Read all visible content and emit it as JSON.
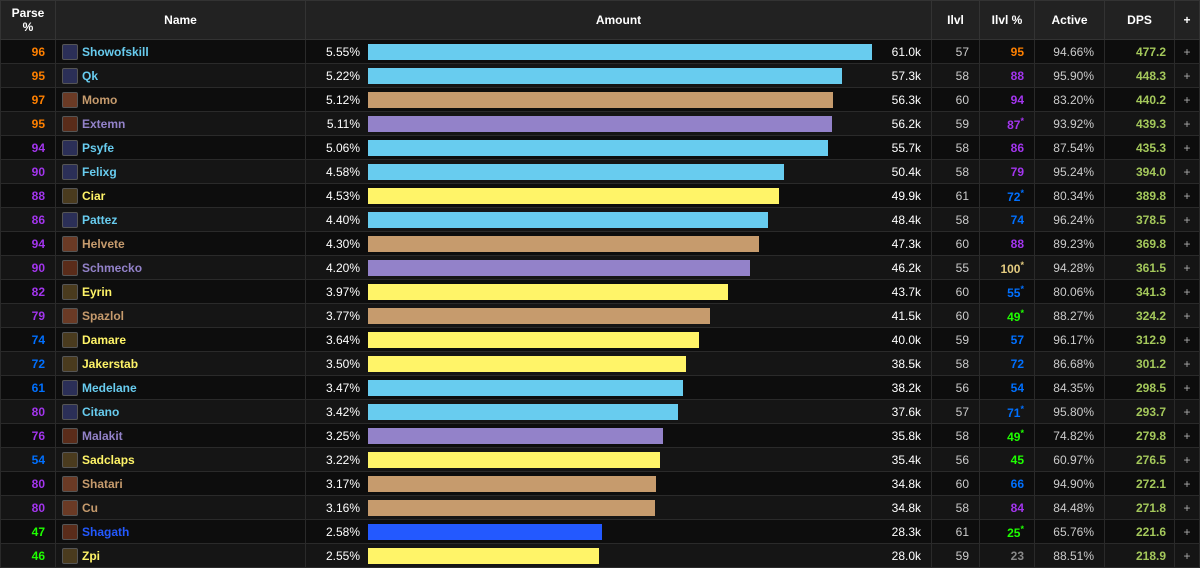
{
  "colors": {
    "parse_legendary": "#ff8000",
    "parse_epic": "#a335ee",
    "parse_rare": "#0070ff",
    "parse_uncommon": "#1eff00",
    "parse_common": "#888888",
    "parse_gold": "#e5cc80",
    "class_mage": "#68ccef",
    "class_warrior": "#c69b6d",
    "class_warlock": "#9382c9",
    "class_rogue": "#fff468",
    "class_shaman": "#2359ff",
    "dps": "#a4c85b"
  },
  "columns": {
    "parse": "Parse %",
    "name": "Name",
    "amount": "Amount",
    "ilvl": "Ilvl",
    "ilvlp": "Ilvl %",
    "active": "Active",
    "dps": "DPS",
    "plus": "+"
  },
  "max_pct": 5.55,
  "rows": [
    {
      "parse": 96,
      "parseColor": "parse_legendary",
      "name": "Showofskill",
      "class": "class_mage",
      "iconBg": "#2b2f57",
      "pct": "5.55%",
      "barPct": 100.0,
      "amount": "61.0k",
      "ilvl": 57,
      "ilvlp": "95",
      "ilvlpColor": "parse_legendary",
      "active": "94.66%",
      "dps": "477.2"
    },
    {
      "parse": 95,
      "parseColor": "parse_legendary",
      "name": "Qk",
      "class": "class_mage",
      "iconBg": "#2b2f57",
      "pct": "5.22%",
      "barPct": 94.1,
      "amount": "57.3k",
      "ilvl": 58,
      "ilvlp": "88",
      "ilvlpColor": "parse_epic",
      "active": "95.90%",
      "dps": "448.3"
    },
    {
      "parse": 97,
      "parseColor": "parse_legendary",
      "name": "Momo",
      "class": "class_warrior",
      "iconBg": "#6a3a25",
      "pct": "5.12%",
      "barPct": 92.3,
      "amount": "56.3k",
      "ilvl": 60,
      "ilvlp": "94",
      "ilvlpColor": "parse_epic",
      "active": "83.20%",
      "dps": "440.2"
    },
    {
      "parse": 95,
      "parseColor": "parse_legendary",
      "name": "Extemn",
      "class": "class_warlock",
      "iconBg": "#5a2c1a",
      "pct": "5.11%",
      "barPct": 92.1,
      "amount": "56.2k",
      "ilvl": 59,
      "ilvlp": "87",
      "ilvlpStar": true,
      "ilvlpColor": "parse_epic",
      "active": "93.92%",
      "dps": "439.3"
    },
    {
      "parse": 94,
      "parseColor": "parse_epic",
      "name": "Psyfe",
      "class": "class_mage",
      "iconBg": "#2b2f57",
      "pct": "5.06%",
      "barPct": 91.2,
      "amount": "55.7k",
      "ilvl": 58,
      "ilvlp": "86",
      "ilvlpColor": "parse_epic",
      "active": "87.54%",
      "dps": "435.3"
    },
    {
      "parse": 90,
      "parseColor": "parse_epic",
      "name": "Felixg",
      "class": "class_mage",
      "iconBg": "#2b2f57",
      "pct": "4.58%",
      "barPct": 82.5,
      "amount": "50.4k",
      "ilvl": 58,
      "ilvlp": "79",
      "ilvlpColor": "parse_epic",
      "active": "95.24%",
      "dps": "394.0"
    },
    {
      "parse": 88,
      "parseColor": "parse_epic",
      "name": "Ciar",
      "class": "class_rogue",
      "iconBg": "#4a3b1e",
      "pct": "4.53%",
      "barPct": 81.6,
      "amount": "49.9k",
      "ilvl": 61,
      "ilvlp": "72",
      "ilvlpStar": true,
      "ilvlpColor": "parse_rare",
      "active": "80.34%",
      "dps": "389.8"
    },
    {
      "parse": 86,
      "parseColor": "parse_epic",
      "name": "Pattez",
      "class": "class_mage",
      "iconBg": "#2b2f57",
      "pct": "4.40%",
      "barPct": 79.3,
      "amount": "48.4k",
      "ilvl": 58,
      "ilvlp": "74",
      "ilvlpColor": "parse_rare",
      "active": "96.24%",
      "dps": "378.5"
    },
    {
      "parse": 94,
      "parseColor": "parse_epic",
      "name": "Helvete",
      "class": "class_warrior",
      "iconBg": "#6a3a25",
      "pct": "4.30%",
      "barPct": 77.5,
      "amount": "47.3k",
      "ilvl": 60,
      "ilvlp": "88",
      "ilvlpColor": "parse_epic",
      "active": "89.23%",
      "dps": "369.8"
    },
    {
      "parse": 90,
      "parseColor": "parse_epic",
      "name": "Schmecko",
      "class": "class_warlock",
      "iconBg": "#5a2c1a",
      "pct": "4.20%",
      "barPct": 75.7,
      "amount": "46.2k",
      "ilvl": 55,
      "ilvlp": "100",
      "ilvlpStar": true,
      "ilvlpColor": "parse_gold",
      "active": "94.28%",
      "dps": "361.5"
    },
    {
      "parse": 82,
      "parseColor": "parse_epic",
      "name": "Eyrin",
      "class": "class_rogue",
      "iconBg": "#4a3b1e",
      "pct": "3.97%",
      "barPct": 71.5,
      "amount": "43.7k",
      "ilvl": 60,
      "ilvlp": "55",
      "ilvlpStar": true,
      "ilvlpColor": "parse_rare",
      "active": "80.06%",
      "dps": "341.3"
    },
    {
      "parse": 79,
      "parseColor": "parse_epic",
      "name": "Spazlol",
      "class": "class_warrior",
      "iconBg": "#6a3a25",
      "pct": "3.77%",
      "barPct": 67.9,
      "amount": "41.5k",
      "ilvl": 60,
      "ilvlp": "49",
      "ilvlpStar": true,
      "ilvlpColor": "parse_uncommon",
      "active": "88.27%",
      "dps": "324.2"
    },
    {
      "parse": 74,
      "parseColor": "parse_rare",
      "name": "Damare",
      "class": "class_rogue",
      "iconBg": "#4a3b1e",
      "pct": "3.64%",
      "barPct": 65.6,
      "amount": "40.0k",
      "ilvl": 59,
      "ilvlp": "57",
      "ilvlpColor": "parse_rare",
      "active": "96.17%",
      "dps": "312.9"
    },
    {
      "parse": 72,
      "parseColor": "parse_rare",
      "name": "Jakerstab",
      "class": "class_rogue",
      "iconBg": "#4a3b1e",
      "pct": "3.50%",
      "barPct": 63.1,
      "amount": "38.5k",
      "ilvl": 58,
      "ilvlp": "72",
      "ilvlpColor": "parse_rare",
      "active": "86.68%",
      "dps": "301.2"
    },
    {
      "parse": 61,
      "parseColor": "parse_rare",
      "name": "Medelane",
      "class": "class_mage",
      "iconBg": "#2b2f57",
      "pct": "3.47%",
      "barPct": 62.5,
      "amount": "38.2k",
      "ilvl": 56,
      "ilvlp": "54",
      "ilvlpColor": "parse_rare",
      "active": "84.35%",
      "dps": "298.5"
    },
    {
      "parse": 80,
      "parseColor": "parse_epic",
      "name": "Citano",
      "class": "class_mage",
      "iconBg": "#2b2f57",
      "pct": "3.42%",
      "barPct": 61.6,
      "amount": "37.6k",
      "ilvl": 57,
      "ilvlp": "71",
      "ilvlpStar": true,
      "ilvlpColor": "parse_rare",
      "active": "95.80%",
      "dps": "293.7"
    },
    {
      "parse": 76,
      "parseColor": "parse_epic",
      "name": "Malakit",
      "class": "class_warlock",
      "iconBg": "#5a2c1a",
      "pct": "3.25%",
      "barPct": 58.6,
      "amount": "35.8k",
      "ilvl": 58,
      "ilvlp": "49",
      "ilvlpStar": true,
      "ilvlpColor": "parse_uncommon",
      "active": "74.82%",
      "dps": "279.8"
    },
    {
      "parse": 54,
      "parseColor": "parse_rare",
      "name": "Sadclaps",
      "class": "class_rogue",
      "iconBg": "#4a3b1e",
      "pct": "3.22%",
      "barPct": 58.0,
      "amount": "35.4k",
      "ilvl": 56,
      "ilvlp": "45",
      "ilvlpColor": "parse_uncommon",
      "active": "60.97%",
      "dps": "276.5"
    },
    {
      "parse": 80,
      "parseColor": "parse_epic",
      "name": "Shatari",
      "class": "class_warrior",
      "iconBg": "#6a3a25",
      "pct": "3.17%",
      "barPct": 57.1,
      "amount": "34.8k",
      "ilvl": 60,
      "ilvlp": "66",
      "ilvlpColor": "parse_rare",
      "active": "94.90%",
      "dps": "272.1"
    },
    {
      "parse": 80,
      "parseColor": "parse_epic",
      "name": "Cu",
      "class": "class_warrior",
      "iconBg": "#6a3a25",
      "pct": "3.16%",
      "barPct": 56.9,
      "amount": "34.8k",
      "ilvl": 58,
      "ilvlp": "84",
      "ilvlpColor": "parse_epic",
      "active": "84.48%",
      "dps": "271.8"
    },
    {
      "parse": 47,
      "parseColor": "parse_uncommon",
      "name": "Shagath",
      "class": "class_shaman",
      "iconBg": "#5a2c1a",
      "pct": "2.58%",
      "barPct": 46.5,
      "amount": "28.3k",
      "ilvl": 61,
      "ilvlp": "25",
      "ilvlpStar": true,
      "ilvlpColor": "parse_uncommon",
      "active": "65.76%",
      "dps": "221.6"
    },
    {
      "parse": 46,
      "parseColor": "parse_uncommon",
      "name": "Zpi",
      "class": "class_rogue",
      "iconBg": "#4a3b1e",
      "pct": "2.55%",
      "barPct": 45.9,
      "amount": "28.0k",
      "ilvl": 59,
      "ilvlp": "23",
      "ilvlpColor": "parse_common",
      "active": "88.51%",
      "dps": "218.9"
    }
  ]
}
